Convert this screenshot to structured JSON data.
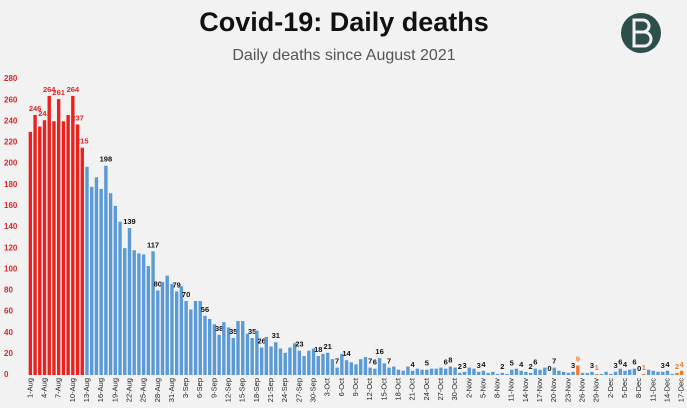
{
  "chart_data": {
    "type": "bar",
    "title": "Covid-19: Daily deaths",
    "subtitle": "Daily deaths since August 2021",
    "categories": [
      "1-Aug",
      null,
      null,
      "4-Aug",
      null,
      null,
      "7-Aug",
      null,
      null,
      "10-Aug",
      null,
      null,
      "13-Aug",
      null,
      null,
      "16-Aug",
      null,
      null,
      "19-Aug",
      null,
      null,
      "22-Aug",
      null,
      null,
      "25-Aug",
      null,
      null,
      "28-Aug",
      null,
      null,
      "31-Aug",
      null,
      null,
      "3-Sep",
      null,
      null,
      "6-Sep",
      null,
      null,
      "9-Sep",
      null,
      null,
      "12-Sep",
      null,
      null,
      "15-Sep",
      null,
      null,
      "18-Sep",
      null,
      null,
      "21-Sep",
      null,
      null,
      "24-Sep",
      null,
      null,
      "27-Sep",
      null,
      null,
      "30-Sep",
      null,
      null,
      "3-Oct",
      null,
      null,
      "6-Oct",
      null,
      null,
      "9-Oct",
      null,
      null,
      "12-Oct",
      null,
      null,
      "15-Oct",
      null,
      null,
      "18-Oct",
      null,
      null,
      "21-Oct",
      null,
      null,
      "24-Oct",
      null,
      null,
      "27-Oct",
      null,
      null,
      "30-Oct",
      null,
      null,
      "2-Nov",
      null,
      null,
      "5-Nov",
      null,
      null,
      "8-Nov",
      null,
      null,
      "11-Nov",
      null,
      null,
      "14-Nov",
      null,
      null,
      "17-Nov",
      null,
      null,
      "20-Nov",
      null,
      null,
      "23-Nov",
      null,
      null,
      "26-Nov",
      null,
      null,
      "29-Nov",
      null,
      null,
      "2-Dec",
      null,
      null,
      "5-Dec",
      null,
      null,
      "8-Dec",
      null,
      null,
      "11-Dec",
      null,
      null,
      "14-Dec",
      null,
      null,
      "17-Dec"
    ],
    "values": [
      230,
      246,
      235,
      241,
      264,
      240,
      261,
      240,
      246,
      264,
      237,
      215,
      197,
      178,
      187,
      176,
      198,
      172,
      160,
      145,
      120,
      139,
      118,
      115,
      114,
      103,
      117,
      80,
      88,
      94,
      86,
      79,
      84,
      70,
      62,
      70,
      70,
      56,
      53,
      48,
      38,
      50,
      45,
      35,
      51,
      51,
      39,
      35,
      42,
      26,
      36,
      27,
      31,
      25,
      21,
      26,
      30,
      23,
      18,
      23,
      25,
      18,
      20,
      21,
      15,
      7,
      20,
      14,
      12,
      10,
      15,
      17,
      7,
      6,
      16,
      11,
      7,
      8,
      5,
      4,
      8,
      4,
      6,
      5,
      5,
      6,
      6,
      7,
      6,
      8,
      7,
      2,
      3,
      7,
      6,
      3,
      4,
      2,
      3,
      1,
      2,
      1,
      5,
      6,
      4,
      3,
      2,
      6,
      5,
      7,
      0,
      7,
      4,
      3,
      2,
      3,
      9,
      2,
      2,
      3,
      1,
      1,
      3,
      1,
      3,
      6,
      4,
      5,
      6,
      0,
      1,
      5,
      4,
      3,
      3,
      4,
      1,
      2,
      4
    ],
    "labeled_indices": [
      1,
      3,
      4,
      6,
      9,
      10,
      11,
      16,
      21,
      26,
      27,
      31,
      33,
      37,
      40,
      43,
      47,
      49,
      52,
      57,
      61,
      63,
      65,
      67,
      72,
      73,
      74,
      76,
      81,
      84,
      88,
      89,
      91,
      92,
      95,
      96,
      100,
      102,
      104,
      106,
      107,
      110,
      111,
      115,
      116,
      119,
      120,
      124,
      125,
      126,
      128,
      129,
      130,
      134,
      135,
      137,
      138
    ],
    "color": "#5b9bd5",
    "color_overrides": [
      {
        "color": "#e8231f",
        "indices": [
          0,
          1,
          2,
          3,
          4,
          5,
          6,
          7,
          8,
          9,
          10,
          11
        ]
      },
      {
        "color": "#ed7d31",
        "indices": [
          116,
          120,
          130,
          137,
          138
        ]
      }
    ],
    "ylim": [
      0,
      280
    ],
    "yticks": [
      0,
      20,
      40,
      60,
      80,
      100,
      120,
      140,
      160,
      180,
      200,
      220,
      240,
      260,
      280
    ],
    "tick_label_color": "#d9262a",
    "grid": false
  }
}
